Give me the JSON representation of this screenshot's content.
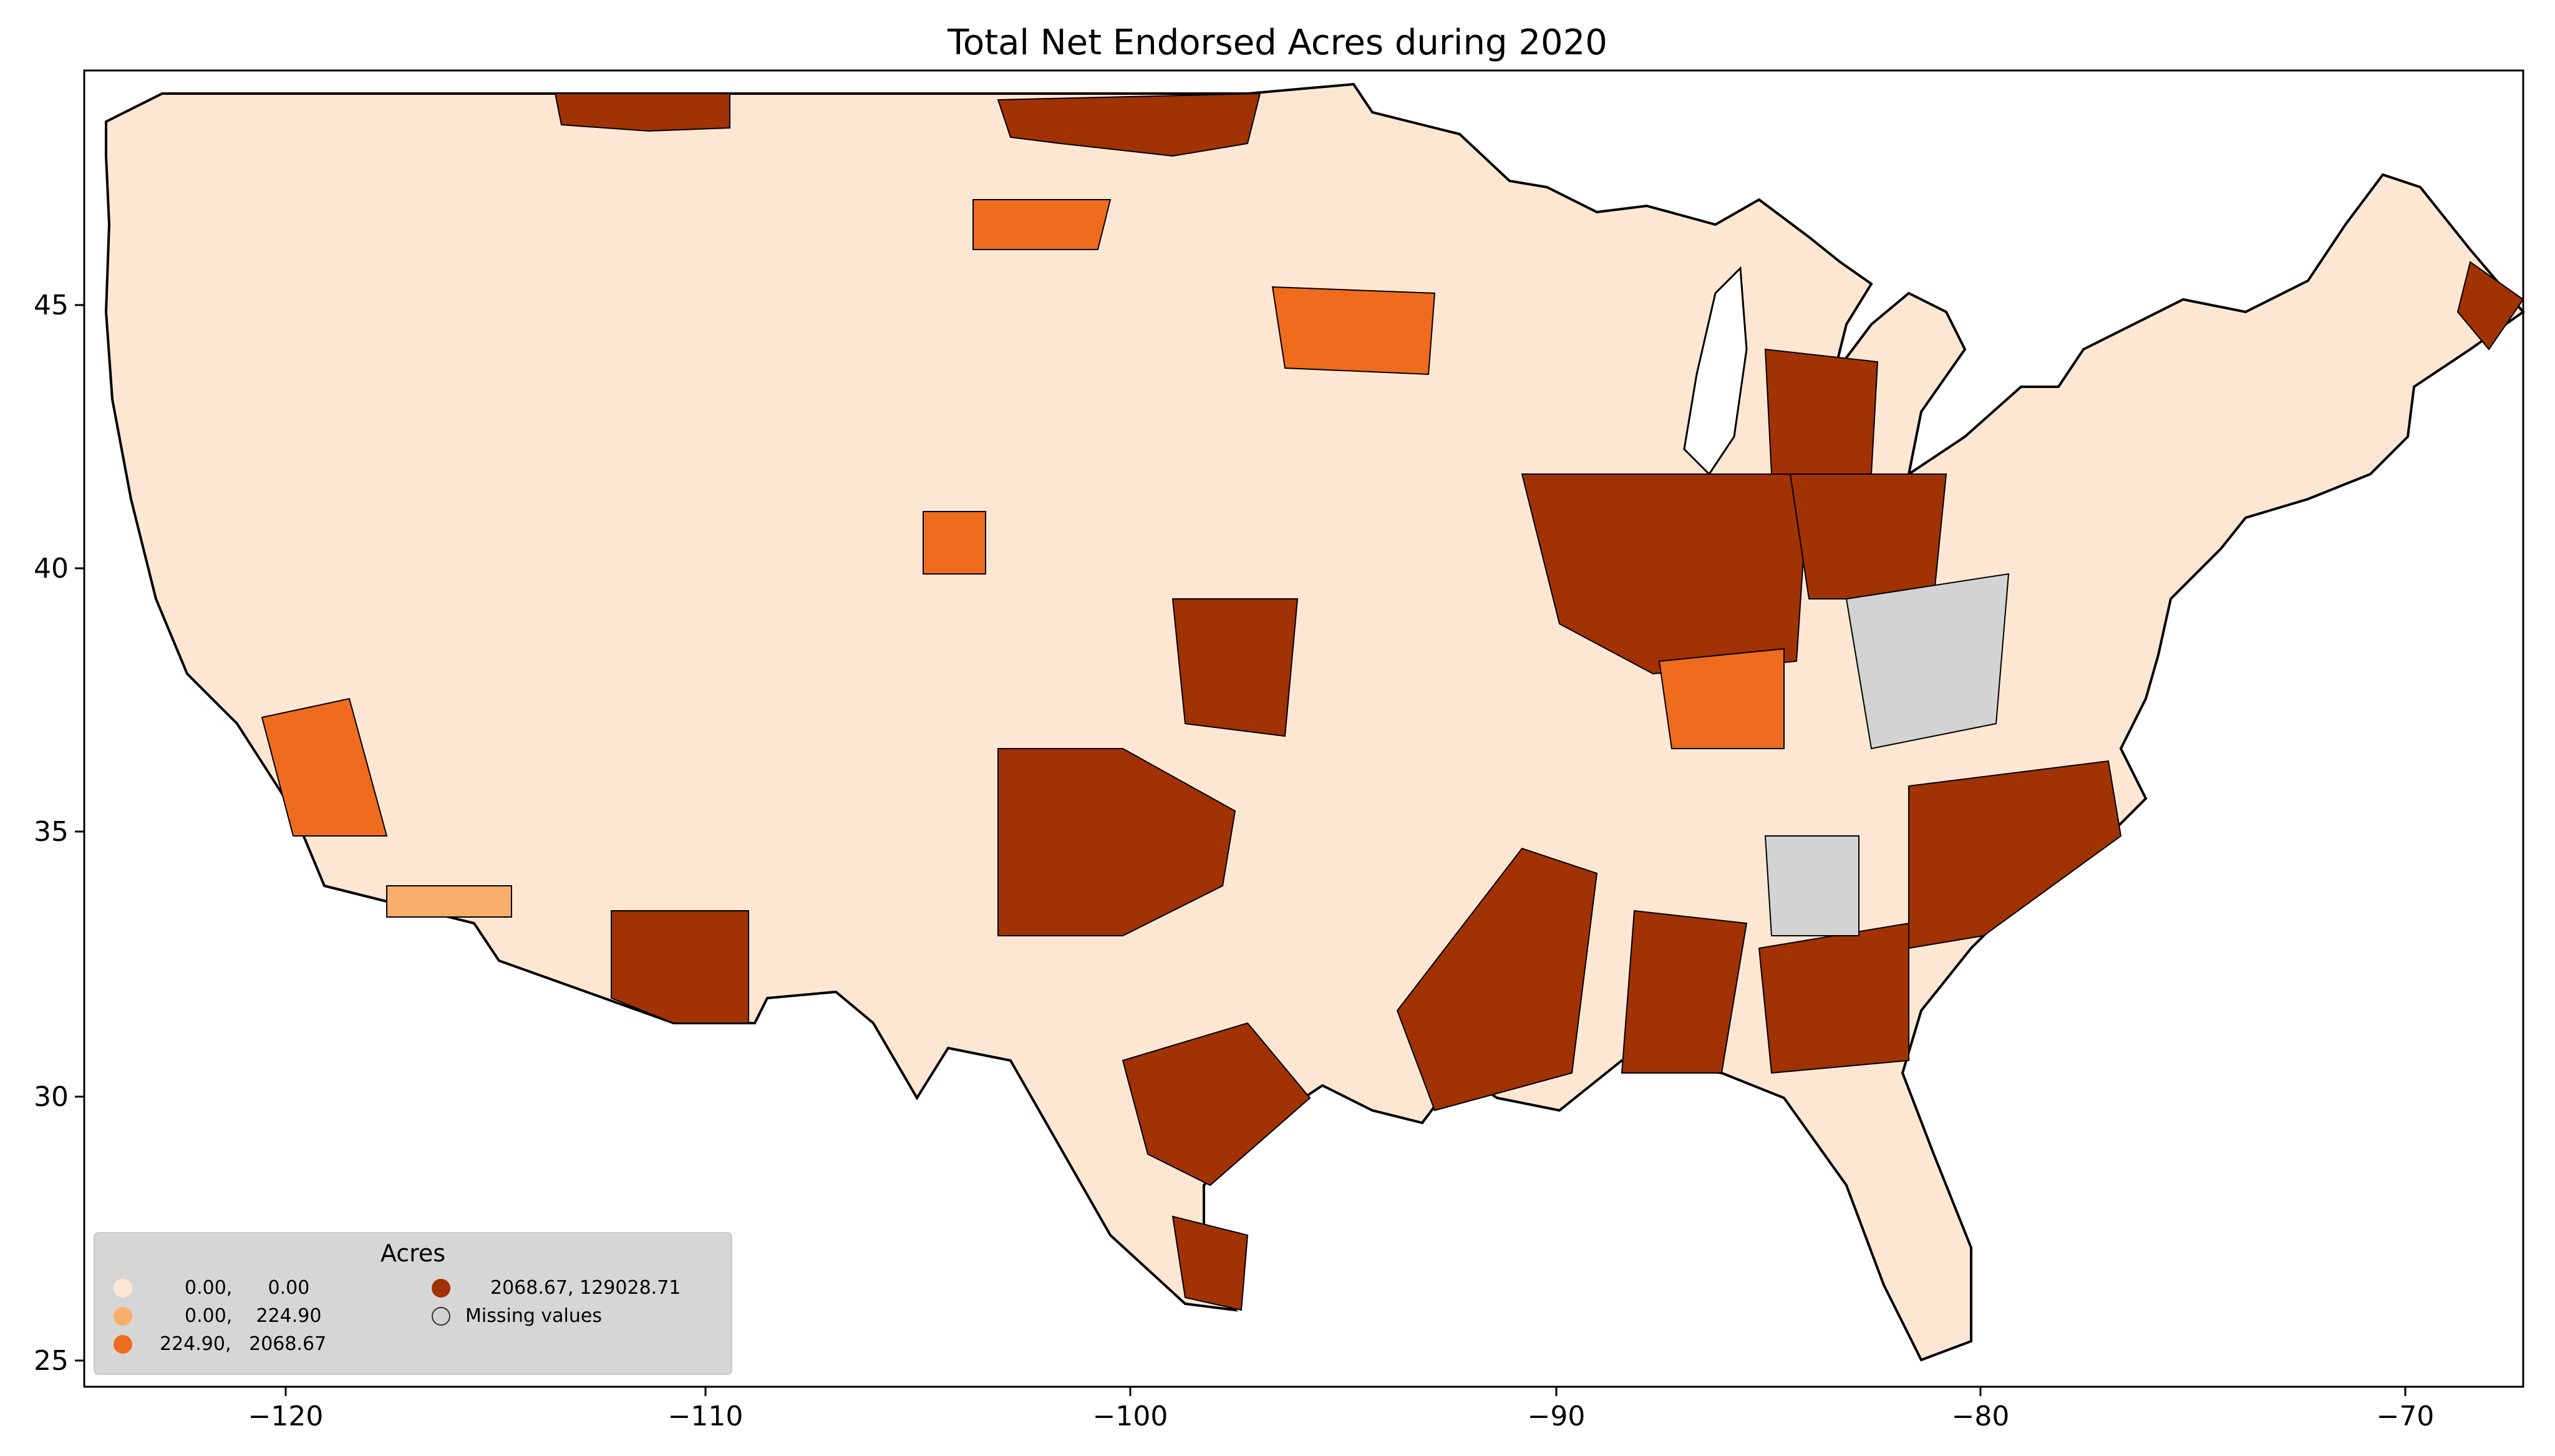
{
  "title": "Total Net Endorsed Acres during 2020",
  "legend": {
    "title": "Acres",
    "items": [
      {
        "label": "0.00,      0.00",
        "color": "#fde7d3"
      },
      {
        "label": "0.00,    224.90",
        "color": "#f9ae6b"
      },
      {
        "label": "224.90,   2068.67",
        "color": "#ef6b1d"
      },
      {
        "label": "2068.67, 129028.71",
        "color": "#a13203"
      },
      {
        "label": "Missing values",
        "color": "#d3d3d3"
      }
    ]
  },
  "axes": {
    "x_ticks": [
      "−120",
      "−110",
      "−100",
      "−90",
      "−80",
      "−70"
    ],
    "y_ticks": [
      "45",
      "40",
      "35",
      "30",
      "25"
    ]
  },
  "colors": {
    "no_endorsement": "#fde7d3",
    "low": "#f9ae6b",
    "mid": "#ef6b1d",
    "high": "#a13203",
    "missing": "#d3d3d3",
    "border": "#000000"
  }
}
